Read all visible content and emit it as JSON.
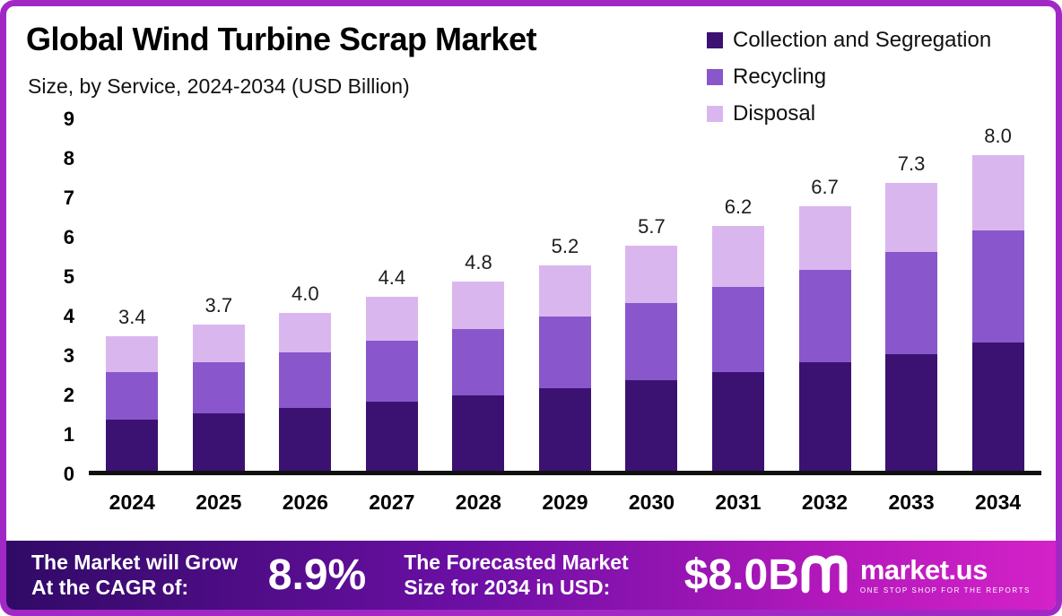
{
  "header": {
    "title": "Global Wind Turbine Scrap Market",
    "subtitle": "Size, by Service, 2024-2034 (USD Billion)"
  },
  "legend": [
    {
      "label": "Collection and Segregation",
      "color": "#3b1272"
    },
    {
      "label": "Recycling",
      "color": "#8956cb"
    },
    {
      "label": "Disposal",
      "color": "#dab6ef"
    }
  ],
  "chart_data": {
    "type": "bar",
    "stacked": true,
    "title": "Global Wind Turbine Scrap Market",
    "subtitle": "Size, by Service, 2024-2034 (USD Billion)",
    "xlabel": "",
    "ylabel": "USD Billion",
    "ylim": [
      0,
      9
    ],
    "yticks": [
      0,
      1,
      2,
      3,
      4,
      5,
      6,
      7,
      8,
      9
    ],
    "grid": false,
    "legend_position": "top-right",
    "categories": [
      "2024",
      "2025",
      "2026",
      "2027",
      "2028",
      "2029",
      "2030",
      "2031",
      "2032",
      "2033",
      "2034"
    ],
    "series": [
      {
        "name": "Collection and Segregation",
        "color": "#3b1272",
        "values": [
          1.3,
          1.45,
          1.6,
          1.75,
          1.9,
          2.1,
          2.3,
          2.5,
          2.75,
          2.95,
          3.25
        ]
      },
      {
        "name": "Recycling",
        "color": "#8956cb",
        "values": [
          1.2,
          1.3,
          1.4,
          1.55,
          1.7,
          1.8,
          1.95,
          2.15,
          2.35,
          2.6,
          2.85
        ]
      },
      {
        "name": "Disposal",
        "color": "#dab6ef",
        "values": [
          0.9,
          0.95,
          1.0,
          1.1,
          1.2,
          1.3,
          1.45,
          1.55,
          1.6,
          1.75,
          1.9
        ]
      }
    ],
    "totals_labels": [
      "3.4",
      "3.7",
      "4.0",
      "4.4",
      "4.8",
      "5.2",
      "5.7",
      "6.2",
      "6.7",
      "7.3",
      "8.0"
    ]
  },
  "footer": {
    "cagr_label": "The Market will Grow At the CAGR of:",
    "cagr_value": "8.9%",
    "forecast_label": "The Forecasted Market Size for 2034 in USD:",
    "forecast_value": "$8.0B",
    "brand": "market.us",
    "brand_tagline": "ONE STOP SHOP FOR THE REPORTS"
  }
}
